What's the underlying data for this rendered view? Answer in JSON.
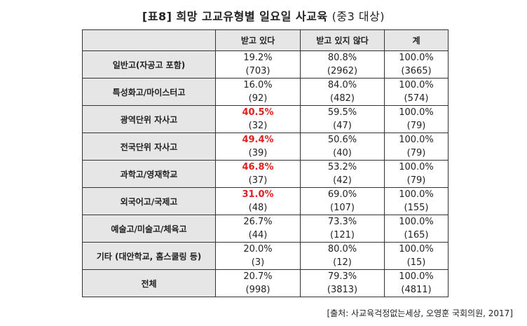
{
  "title": {
    "label": "[표8]",
    "main": "희망 고교유형별 일요일 사교육",
    "sub": "(중3 대상)"
  },
  "table": {
    "headers": [
      "",
      "받고 있다",
      "받고 있지 않다",
      "계"
    ],
    "rows": [
      {
        "label": "일반고(자공고 포함)",
        "cells": [
          {
            "pct": "19.2%",
            "n": "(703)",
            "hl": false
          },
          {
            "pct": "80.8%",
            "n": "(2962)",
            "hl": false
          },
          {
            "pct": "100.0%",
            "n": "(3665)",
            "hl": false
          }
        ]
      },
      {
        "label": "특성화고/마이스터고",
        "cells": [
          {
            "pct": "16.0%",
            "n": "(92)",
            "hl": false
          },
          {
            "pct": "84.0%",
            "n": "(482)",
            "hl": false
          },
          {
            "pct": "100.0%",
            "n": "(574)",
            "hl": false
          }
        ]
      },
      {
        "label": "광역단위 자사고",
        "cells": [
          {
            "pct": "40.5%",
            "n": "(32)",
            "hl": true
          },
          {
            "pct": "59.5%",
            "n": "(47)",
            "hl": false
          },
          {
            "pct": "100.0%",
            "n": "(79)",
            "hl": false
          }
        ]
      },
      {
        "label": "전국단위 자사고",
        "cells": [
          {
            "pct": "49.4%",
            "n": "(39)",
            "hl": true
          },
          {
            "pct": "50.6%",
            "n": "(40)",
            "hl": false
          },
          {
            "pct": "100.0%",
            "n": "(79)",
            "hl": false
          }
        ]
      },
      {
        "label": "과학고/영재학교",
        "cells": [
          {
            "pct": "46.8%",
            "n": "(37)",
            "hl": true
          },
          {
            "pct": "53.2%",
            "n": "(42)",
            "hl": false
          },
          {
            "pct": "100.0%",
            "n": "(79)",
            "hl": false
          }
        ]
      },
      {
        "label": "외국어고/국제고",
        "cells": [
          {
            "pct": "31.0%",
            "n": "(48)",
            "hl": true
          },
          {
            "pct": "69.0%",
            "n": "(107)",
            "hl": false
          },
          {
            "pct": "100.0%",
            "n": "(155)",
            "hl": false
          }
        ]
      },
      {
        "label": "예술고/미술고/체육고",
        "cells": [
          {
            "pct": "26.7%",
            "n": "(44)",
            "hl": false
          },
          {
            "pct": "73.3%",
            "n": "(121)",
            "hl": false
          },
          {
            "pct": "100.0%",
            "n": "(165)",
            "hl": false
          }
        ]
      },
      {
        "label": "기타 (대안학교, 홈스쿨링 등)",
        "cells": [
          {
            "pct": "20.0%",
            "n": "(3)",
            "hl": false
          },
          {
            "pct": "80.0%",
            "n": "(12)",
            "hl": false
          },
          {
            "pct": "100.0%",
            "n": "(15)",
            "hl": false
          }
        ]
      },
      {
        "label": "전체",
        "cells": [
          {
            "pct": "20.7%",
            "n": "(998)",
            "hl": false
          },
          {
            "pct": "79.3%",
            "n": "(3813)",
            "hl": false
          },
          {
            "pct": "100.0%",
            "n": "(4811)",
            "hl": false
          }
        ]
      }
    ]
  },
  "highlight_color": "#e0201e",
  "source": "[출처: 사교육걱정없는세상, 오영훈 국회의원, 2017]"
}
